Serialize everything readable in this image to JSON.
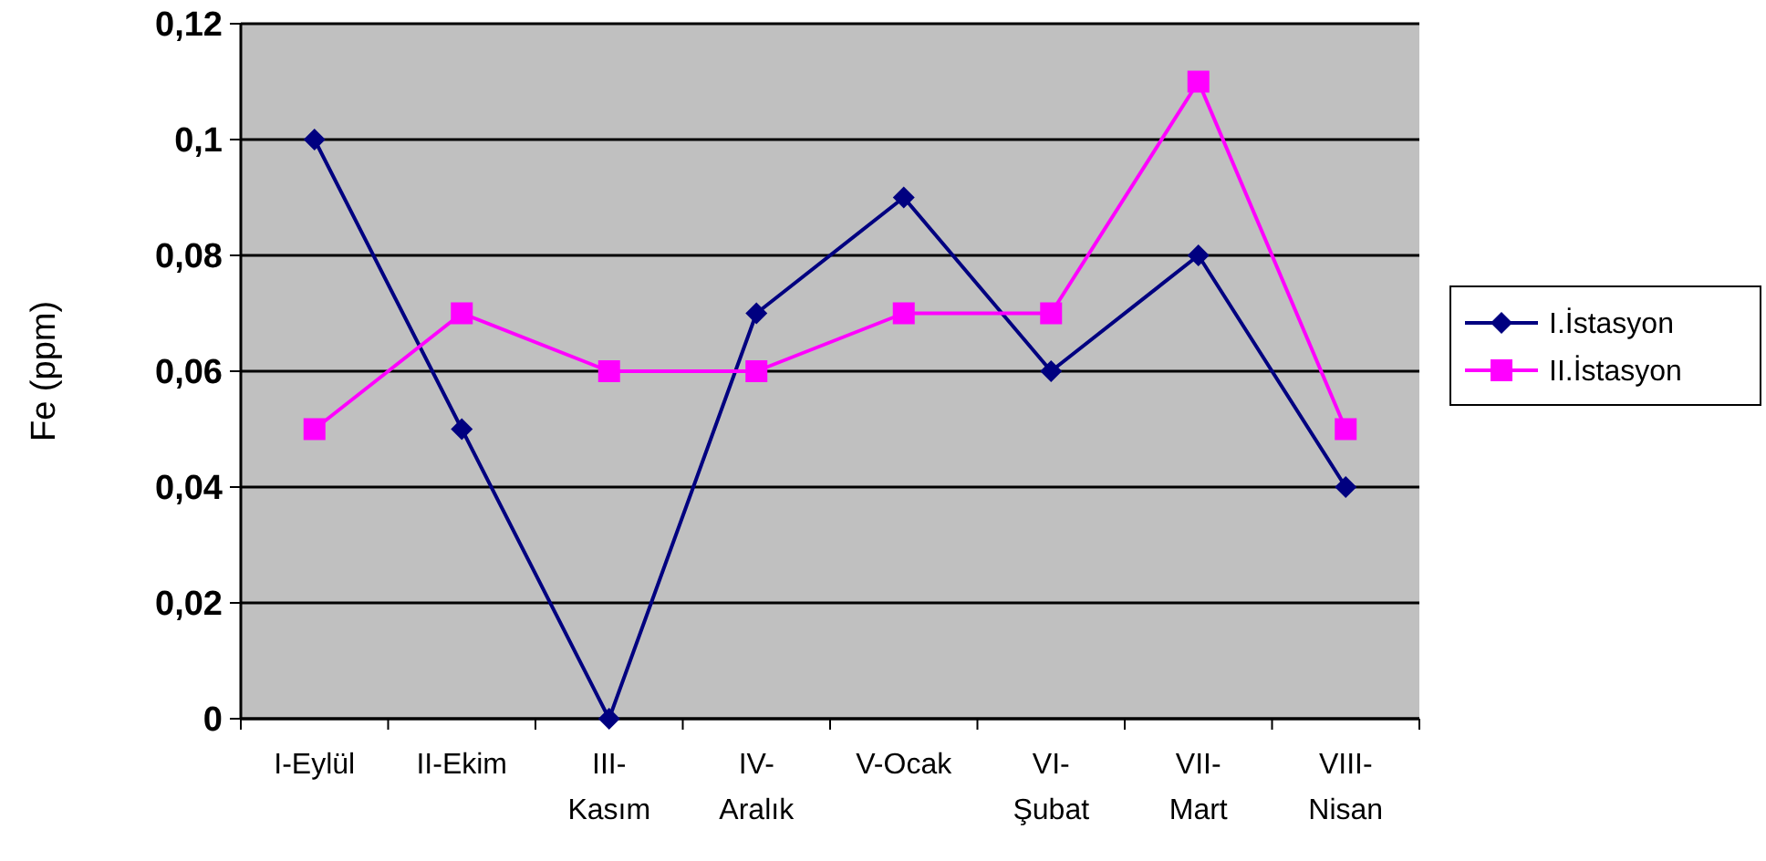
{
  "chart_data": {
    "type": "line",
    "ylabel": "Fe (ppm)",
    "categories": [
      "I-Eylül",
      "II-Ekim",
      "III-Kasım",
      "IV-Aralık",
      "V-Ocak",
      "VI-Şubat",
      "VII-Mart",
      "VIII-Nisan"
    ],
    "series": [
      {
        "name": "I.İstasyon",
        "color": "#000080",
        "marker": "diamond",
        "values": [
          0.1,
          0.05,
          0,
          0.07,
          0.09,
          0.06,
          0.08,
          0.04
        ]
      },
      {
        "name": "II.İstasyon",
        "color": "#ff00ff",
        "marker": "square",
        "values": [
          0.05,
          0.07,
          0.06,
          0.06,
          0.07,
          0.07,
          0.11,
          0.05
        ]
      }
    ],
    "ylim": [
      0,
      0.12
    ],
    "yticks": [
      0,
      {
        "value": 0.02,
        "label": "0,02"
      },
      {
        "value": 0.04,
        "label": "0,04"
      },
      {
        "value": 0.06,
        "label": "0,06"
      },
      {
        "value": 0.08,
        "label": "0,08"
      },
      {
        "value": 0.1,
        "label": "0,1"
      },
      {
        "value": 0.12,
        "label": "0,12"
      }
    ],
    "grid": "y",
    "legend": "right",
    "line_style": "solid"
  }
}
